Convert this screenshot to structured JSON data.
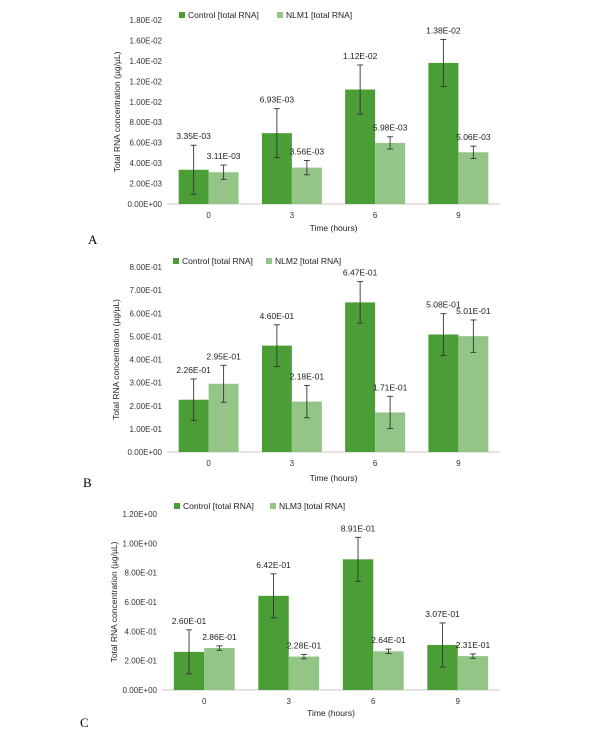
{
  "colors": {
    "control": "#4a9e35",
    "treated": "#93c686",
    "axis": "#c8c8c8",
    "errbar": "#333333"
  },
  "chart_data": [
    {
      "type": "bar",
      "panel_label": "A",
      "categories": [
        "0",
        "3",
        "6",
        "9"
      ],
      "series": [
        {
          "name": "Control [total RNA]",
          "values": [
            0.00335,
            0.00693,
            0.0112,
            0.0138
          ],
          "errors": [
            0.0024,
            0.0024,
            0.0024,
            0.0023
          ],
          "labels": [
            "3.35E-03",
            "6.93E-03",
            "1.12E-02",
            "1.38E-02"
          ]
        },
        {
          "name": "NLM1 [total RNA]",
          "values": [
            0.00311,
            0.00356,
            0.00598,
            0.00506
          ],
          "errors": [
            0.0007,
            0.0007,
            0.0006,
            0.0006
          ],
          "labels": [
            "3.11E-03",
            "3.56E-03",
            "5.98E-03",
            "5.06E-03"
          ]
        }
      ],
      "xlabel": "Time (hours)",
      "ylabel": "Total RNA concentration (µg/µL)",
      "ylim": [
        0,
        0.018
      ],
      "ytick_labels": [
        "0.00E+00",
        "2.00E-03",
        "4.00E-03",
        "6.00E-03",
        "8.00E-03",
        "1.00E-02",
        "1.20E-02",
        "1.40E-02",
        "1.60E-02",
        "1.80E-02"
      ],
      "legend_position": "top"
    },
    {
      "type": "bar",
      "panel_label": "B",
      "categories": [
        "0",
        "3",
        "6",
        "9"
      ],
      "series": [
        {
          "name": "Control [total RNA]",
          "values": [
            0.226,
            0.46,
            0.647,
            0.508
          ],
          "errors": [
            0.09,
            0.09,
            0.09,
            0.09
          ],
          "labels": [
            "2.26E-01",
            "4.60E-01",
            "6.47E-01",
            "5.08E-01"
          ]
        },
        {
          "name": "NLM2 [total RNA]",
          "values": [
            0.295,
            0.218,
            0.171,
            0.501
          ],
          "errors": [
            0.08,
            0.07,
            0.07,
            0.07
          ],
          "labels": [
            "2.95E-01",
            "2.18E-01",
            "1.71E-01",
            "5.01E-01"
          ]
        }
      ],
      "xlabel": "Time (hours)",
      "ylabel": "Total RNA concentration (µg/µL)",
      "ylim": [
        0,
        0.8
      ],
      "ytick_labels": [
        "0.00E+00",
        "1.00E-01",
        "2.00E-01",
        "3.00E-01",
        "4.00E-01",
        "5.00E-01",
        "6.00E-01",
        "7.00E-01",
        "8.00E-01"
      ],
      "legend_position": "top"
    },
    {
      "type": "bar",
      "panel_label": "C",
      "categories": [
        "0",
        "3",
        "6",
        "9"
      ],
      "series": [
        {
          "name": "Control [total RNA]",
          "values": [
            0.26,
            0.642,
            0.891,
            0.307
          ],
          "errors": [
            0.15,
            0.15,
            0.15,
            0.15
          ],
          "labels": [
            "2.60E-01",
            "6.42E-01",
            "8.91E-01",
            "3.07E-01"
          ]
        },
        {
          "name": "NLM3 [total RNA]",
          "values": [
            0.286,
            0.228,
            0.264,
            0.231
          ],
          "errors": [
            0.015,
            0.015,
            0.015,
            0.015
          ],
          "labels": [
            "2.86E-01",
            "2.28E-01",
            "2.64E-01",
            "2.31E-01"
          ]
        }
      ],
      "xlabel": "Time (hours)",
      "ylabel": "Total RNA concentration (µg/µL)",
      "ylim": [
        0,
        1.2
      ],
      "ytick_labels": [
        "0.00E+00",
        "2.00E-01",
        "4.00E-01",
        "6.00E-01",
        "8.00E-01",
        "1.00E+00",
        "1.20E+00"
      ],
      "legend_position": "top"
    }
  ]
}
